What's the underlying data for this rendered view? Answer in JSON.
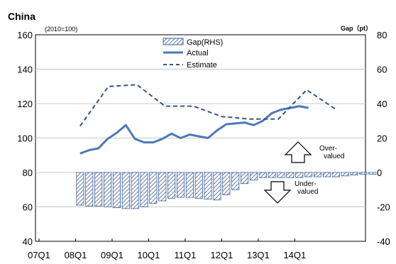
{
  "chart_data": {
    "type": "bar+line",
    "title": "China",
    "subtitle": "(2010=100)",
    "right_axis_label": "Gap（pt）",
    "left_ylim": [
      40,
      160
    ],
    "left_yticks": [
      40,
      60,
      80,
      100,
      120,
      140,
      160
    ],
    "right_ylim": [
      -40,
      80
    ],
    "right_yticks": [
      -40,
      -20,
      0,
      20,
      40,
      60,
      80
    ],
    "x_labels": [
      "07Q1",
      "08Q1",
      "09Q1",
      "10Q1",
      "11Q1",
      "12Q1",
      "13Q1",
      "14Q1"
    ],
    "x_start": "07Q1",
    "grid": "horizontal",
    "legend_position": "top-center",
    "legend": [
      "Gap(RHS)",
      "Actual",
      "Estimate"
    ],
    "series": [
      {
        "name": "Gap(RHS)",
        "kind": "bar",
        "axis": "right",
        "color": "#3c5f95",
        "pattern": "hatched",
        "start_index": 4,
        "values": [
          -19,
          -19.5,
          -19.5,
          -20,
          -20.5,
          -21,
          -21,
          -20,
          -18,
          -16.5,
          -15,
          -14.5,
          -14.5,
          -15,
          -15.5,
          -16,
          -13,
          -10,
          -6.5,
          -4.5,
          -3,
          -3,
          -3,
          -3,
          -3,
          -2.5,
          -2.5,
          -2.5,
          -2.5,
          -2,
          -1.5,
          -1,
          -1
        ]
      },
      {
        "name": "Actual",
        "kind": "line",
        "axis": "left",
        "color": "#4a79b9",
        "start_index": 4,
        "values": [
          91,
          93,
          94,
          99.5,
          103,
          107.5,
          99.5,
          97.5,
          97.5,
          99.5,
          102.5,
          100,
          102,
          101,
          100,
          104.5,
          108,
          108.5,
          109,
          107.5,
          110,
          114.5,
          116.5,
          117.5,
          118.5,
          117.5
        ]
      },
      {
        "name": "Estimate",
        "kind": "line",
        "axis": "left",
        "color": "#34558a",
        "dashed": true,
        "start_index": 4,
        "values": [
          107,
          130,
          131,
          118.5,
          118.5,
          112.5,
          111,
          111,
          128,
          117
        ]
      }
    ],
    "annotations": [
      {
        "text_lines": [
          "Over-",
          "valued"
        ],
        "arrow": "up"
      },
      {
        "text_lines": [
          "Under-",
          "valued"
        ],
        "arrow": "down"
      }
    ]
  }
}
